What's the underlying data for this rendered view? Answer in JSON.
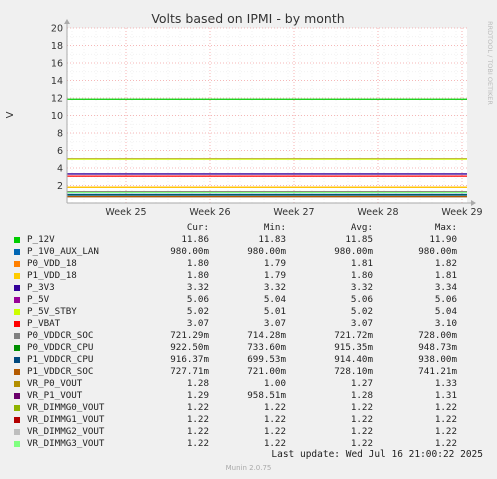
{
  "chart_data": {
    "type": "line",
    "title": "Volts based on IPMI - by month",
    "ylabel": "V",
    "ylim": [
      0,
      20
    ],
    "yticks": [
      2,
      4,
      6,
      8,
      10,
      12,
      14,
      16,
      18,
      20
    ],
    "xticks": [
      "Week 25",
      "Week 26",
      "Week 27",
      "Week 28",
      "Week 29"
    ],
    "side_label": "RRDTOOL / TOBI OETIKER",
    "series": [
      {
        "name": "P_12V",
        "color": "#00cc00",
        "values": [
          11.86
        ],
        "cur": "11.86",
        "min": "11.83",
        "avg": "11.85",
        "max": "11.90"
      },
      {
        "name": "P_1V0_AUX_LAN",
        "color": "#0066b3",
        "values": [
          0.98
        ],
        "cur": "980.00m",
        "min": "980.00m",
        "avg": "980.00m",
        "max": "980.00m"
      },
      {
        "name": "P0_VDD_18",
        "color": "#ff8000",
        "values": [
          1.8
        ],
        "cur": "1.80",
        "min": "1.79",
        "avg": "1.81",
        "max": "1.82"
      },
      {
        "name": "P1_VDD_18",
        "color": "#ffcc00",
        "values": [
          1.8
        ],
        "cur": "1.80",
        "min": "1.79",
        "avg": "1.80",
        "max": "1.81"
      },
      {
        "name": "P_3V3",
        "color": "#330099",
        "values": [
          3.32
        ],
        "cur": "3.32",
        "min": "3.32",
        "avg": "3.32",
        "max": "3.34"
      },
      {
        "name": "P_5V",
        "color": "#990099",
        "values": [
          5.06
        ],
        "cur": "5.06",
        "min": "5.04",
        "avg": "5.06",
        "max": "5.06"
      },
      {
        "name": "P_5V_STBY",
        "color": "#ccff00",
        "values": [
          5.02
        ],
        "cur": "5.02",
        "min": "5.01",
        "avg": "5.02",
        "max": "5.04"
      },
      {
        "name": "P_VBAT",
        "color": "#ff0000",
        "values": [
          3.07
        ],
        "cur": "3.07",
        "min": "3.07",
        "avg": "3.07",
        "max": "3.10"
      },
      {
        "name": "P0_VDDCR_SOC",
        "color": "#808080",
        "values": [
          0.721
        ],
        "cur": "721.29m",
        "min": "714.28m",
        "avg": "721.72m",
        "max": "728.00m"
      },
      {
        "name": "P0_VDDCR_CPU",
        "color": "#008f00",
        "values": [
          0.9225
        ],
        "cur": "922.50m",
        "min": "733.60m",
        "avg": "915.35m",
        "max": "948.73m"
      },
      {
        "name": "P1_VDDCR_CPU",
        "color": "#00487d",
        "values": [
          0.916
        ],
        "cur": "916.37m",
        "min": "699.53m",
        "avg": "914.40m",
        "max": "938.00m"
      },
      {
        "name": "P1_VDDCR_SOC",
        "color": "#b35a00",
        "values": [
          0.728
        ],
        "cur": "727.71m",
        "min": "721.00m",
        "avg": "728.10m",
        "max": "741.21m"
      },
      {
        "name": "VR_P0_VOUT",
        "color": "#b38f00",
        "values": [
          1.27
        ],
        "cur": "1.28",
        "min": "1.00",
        "avg": "1.27",
        "max": "1.33"
      },
      {
        "name": "VR_P1_VOUT",
        "color": "#6b006b",
        "values": [
          1.28
        ],
        "cur": "1.29",
        "min": "958.51m",
        "avg": "1.28",
        "max": "1.31"
      },
      {
        "name": "VR_DIMMG0_VOUT",
        "color": "#8fb300",
        "values": [
          1.22
        ],
        "cur": "1.22",
        "min": "1.22",
        "avg": "1.22",
        "max": "1.22"
      },
      {
        "name": "VR_DIMMG1_VOUT",
        "color": "#b30000",
        "values": [
          1.22
        ],
        "cur": "1.22",
        "min": "1.22",
        "avg": "1.22",
        "max": "1.22"
      },
      {
        "name": "VR_DIMMG2_VOUT",
        "color": "#bebebe",
        "values": [
          1.22
        ],
        "cur": "1.22",
        "min": "1.22",
        "avg": "1.22",
        "max": "1.22"
      },
      {
        "name": "VR_DIMMG3_VOUT",
        "color": "#80ff80",
        "values": [
          1.22
        ],
        "cur": "1.22",
        "min": "1.22",
        "avg": "1.22",
        "max": "1.22"
      }
    ],
    "grid": true
  },
  "legend_headers": {
    "cur": "Cur:",
    "min": "Min:",
    "avg": "Avg:",
    "max": "Max:"
  },
  "footer": {
    "last_update": "Last update: Wed Jul 16 21:00:22 2025",
    "munin": "Munin 2.0.75"
  }
}
